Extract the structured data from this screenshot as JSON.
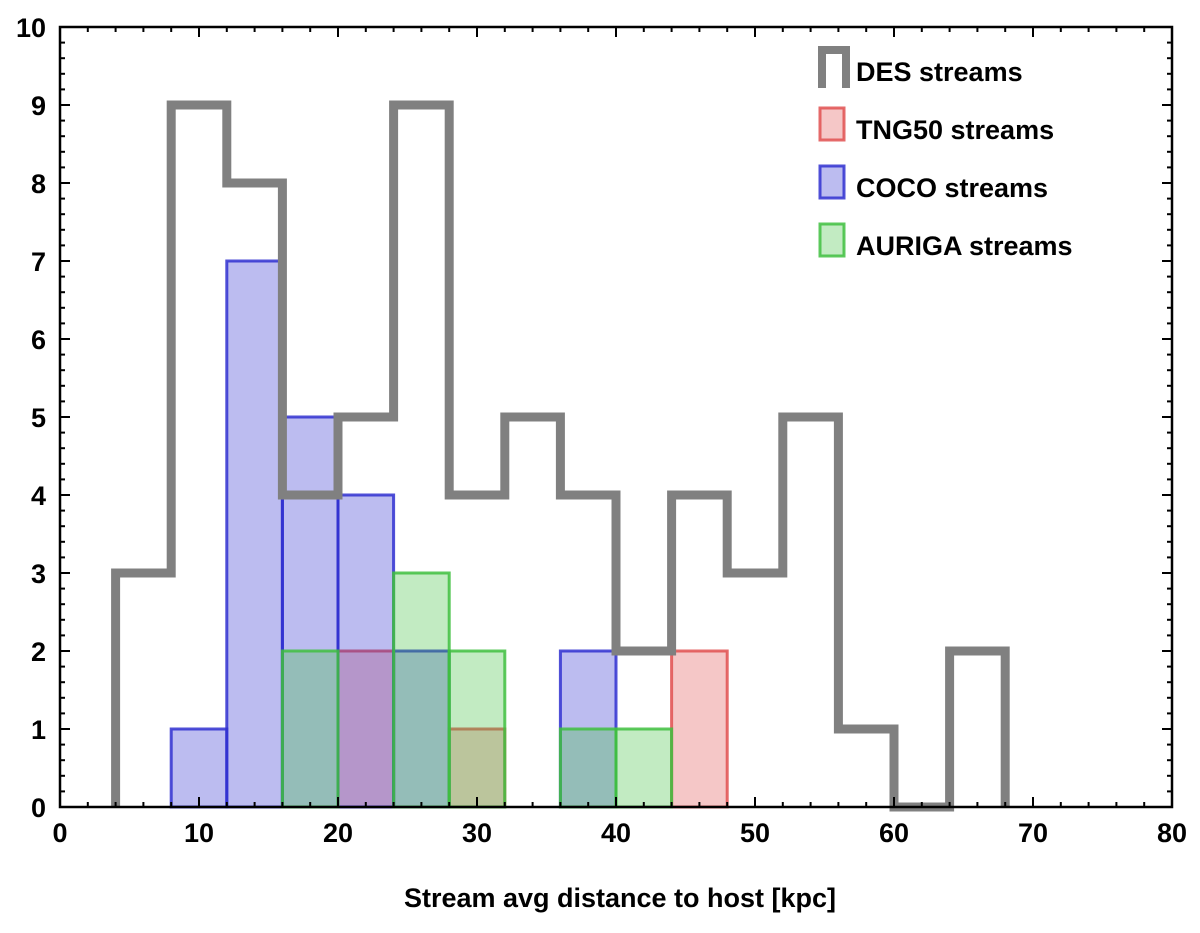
{
  "chart_data": {
    "type": "histogram",
    "xlabel": "Stream avg distance to host  [kpc]",
    "ylabel": "",
    "xlim": [
      0,
      80
    ],
    "ylim": [
      0,
      10
    ],
    "x_ticks": [
      0,
      10,
      20,
      30,
      40,
      50,
      60,
      70,
      80
    ],
    "y_ticks": [
      0,
      1,
      2,
      3,
      4,
      5,
      6,
      7,
      8,
      9,
      10
    ],
    "bin_edges": [
      0,
      4,
      8,
      12,
      16,
      20,
      24,
      28,
      32,
      36,
      40,
      44,
      48,
      52,
      56,
      60,
      64,
      68,
      72,
      76,
      80
    ],
    "legend_position": "top-right",
    "series": [
      {
        "name": "DES streams",
        "style": "step",
        "color": "#808080",
        "values": [
          0,
          3,
          9,
          8,
          4,
          5,
          9,
          4,
          5,
          4,
          2,
          4,
          3,
          5,
          1,
          0,
          2,
          0,
          0,
          0
        ]
      },
      {
        "name": "TNG50 streams",
        "style": "filled",
        "color": "#e05050",
        "values": [
          0,
          0,
          0,
          0,
          0,
          2,
          0,
          1,
          0,
          0,
          0,
          2,
          0,
          0,
          0,
          0,
          0,
          0,
          0,
          0
        ]
      },
      {
        "name": "COCO streams",
        "style": "filled",
        "color": "#3030d0",
        "values": [
          0,
          0,
          1,
          7,
          5,
          4,
          2,
          0,
          0,
          2,
          0,
          0,
          0,
          0,
          0,
          0,
          0,
          0,
          0,
          0
        ]
      },
      {
        "name": "AURIGA streams",
        "style": "filled",
        "color": "#40c040",
        "values": [
          0,
          0,
          0,
          0,
          2,
          0,
          3,
          2,
          0,
          1,
          1,
          0,
          0,
          0,
          0,
          0,
          0,
          0,
          0,
          0
        ]
      }
    ]
  }
}
